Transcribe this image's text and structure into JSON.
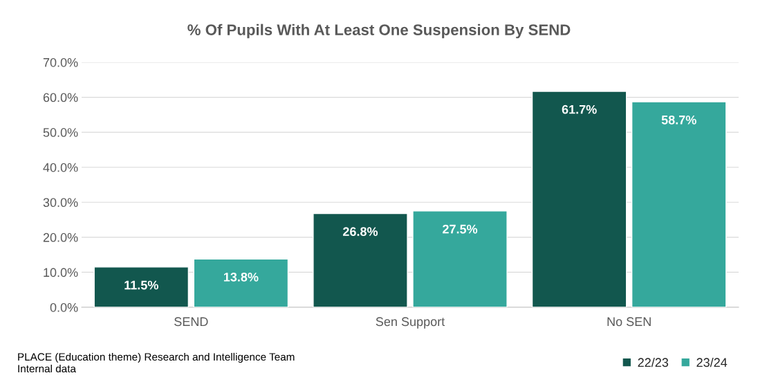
{
  "chart_data": {
    "type": "bar",
    "title": "% Of Pupils With At Least One Suspension By SEND",
    "categories": [
      "SEND",
      "Sen Support",
      "No SEN"
    ],
    "series": [
      {
        "name": "22/23",
        "color": "#12574e",
        "values": [
          11.5,
          26.8,
          61.7
        ],
        "value_labels": [
          "11.5%",
          "26.8%",
          "61.7%"
        ]
      },
      {
        "name": "23/24",
        "color": "#35a89c",
        "values": [
          13.8,
          27.5,
          58.7
        ],
        "value_labels": [
          "13.8%",
          "27.5%",
          "58.7%"
        ]
      }
    ],
    "ylim": [
      0,
      70
    ],
    "yticks": [
      {
        "value": 0,
        "label": "0.0%"
      },
      {
        "value": 10,
        "label": "10.0%"
      },
      {
        "value": 20,
        "label": "20.0%"
      },
      {
        "value": 30,
        "label": "30.0%"
      },
      {
        "value": 40,
        "label": "40.0%"
      },
      {
        "value": 50,
        "label": "50.0%"
      },
      {
        "value": 60,
        "label": "60.0%"
      },
      {
        "value": 70,
        "label": "70.0%"
      }
    ],
    "grid": "y",
    "legend": "bottom right",
    "annotations": [
      "PLACE (Education theme) Research and Intelligence Team",
      "Internal data"
    ]
  }
}
